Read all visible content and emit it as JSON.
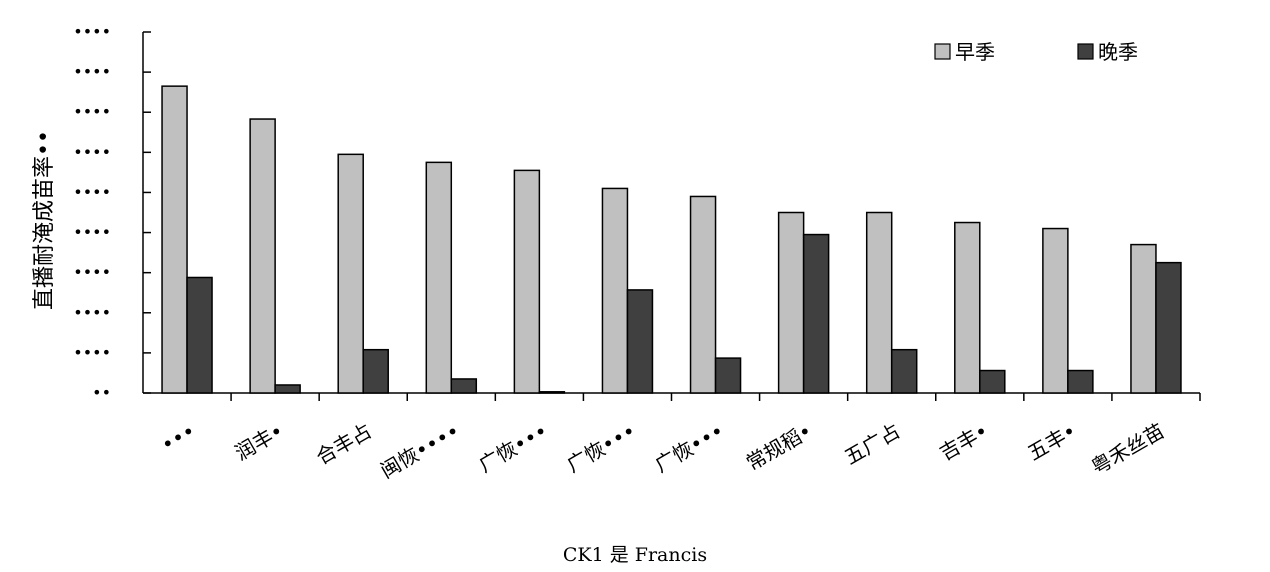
{
  "chart_data": {
    "type": "bar",
    "ylabel": "直播耐淹成苗率••",
    "caption": "CK1 是 Francis",
    "y_tick_labels": [
      "••",
      "••••",
      "••••",
      "••••",
      "••••",
      "••••",
      "••••",
      "••••",
      "••••",
      "••••"
    ],
    "categories": [
      "•••",
      "润丰•",
      "合丰占",
      "闽恢••••",
      "广恢•••",
      "广恢•••",
      "广恢•••",
      "常规稻•",
      "五广占",
      "吉丰•",
      "五丰•",
      "粤禾丝苗"
    ],
    "series": [
      {
        "name": "早季",
        "color": "#c0c0c0",
        "values": [
          76.5,
          68.3,
          59.5,
          57.5,
          55.5,
          51.0,
          49.0,
          45.0,
          45.0,
          42.5,
          41.0,
          37.0
        ]
      },
      {
        "name": "晚季",
        "color": "#404040",
        "values": [
          28.8,
          2.0,
          10.8,
          3.5,
          0.3,
          25.7,
          8.7,
          39.5,
          10.8,
          5.6,
          5.6,
          32.5
        ]
      }
    ],
    "ylim": [
      0,
      90
    ],
    "grid": false,
    "legend": "top-right"
  }
}
